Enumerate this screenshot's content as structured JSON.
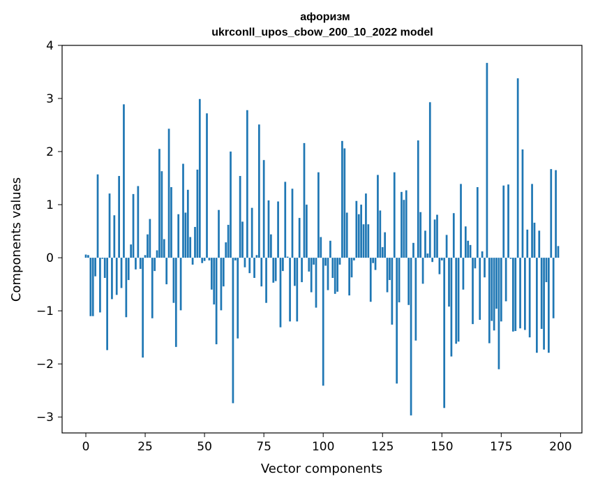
{
  "chart_data": {
    "type": "bar",
    "title": "афоризм",
    "subtitle": "ukrconll_upos_cbow_200_10_2022 model",
    "xlabel": "Vector components",
    "ylabel": "Components values",
    "xlim": [
      -10,
      209
    ],
    "ylim": [
      -3.3,
      4
    ],
    "xticks": [
      0,
      25,
      50,
      75,
      100,
      125,
      150,
      175,
      200
    ],
    "yticks": [
      -3,
      -2,
      -1,
      0,
      1,
      2,
      3,
      4
    ],
    "ytick_labels": [
      "−3",
      "−2",
      "−1",
      "0",
      "1",
      "2",
      "3",
      "4"
    ],
    "bar_color": "#1f77b4",
    "x": [
      0,
      1,
      2,
      3,
      4,
      5,
      6,
      7,
      8,
      9,
      10,
      11,
      12,
      13,
      14,
      15,
      16,
      17,
      18,
      19,
      20,
      21,
      22,
      23,
      24,
      25,
      26,
      27,
      28,
      29,
      30,
      31,
      32,
      33,
      34,
      35,
      36,
      37,
      38,
      39,
      40,
      41,
      42,
      43,
      44,
      45,
      46,
      47,
      48,
      49,
      50,
      51,
      52,
      53,
      54,
      55,
      56,
      57,
      58,
      59,
      60,
      61,
      62,
      63,
      64,
      65,
      66,
      67,
      68,
      69,
      70,
      71,
      72,
      73,
      74,
      75,
      76,
      77,
      78,
      79,
      80,
      81,
      82,
      83,
      84,
      85,
      86,
      87,
      88,
      89,
      90,
      91,
      92,
      93,
      94,
      95,
      96,
      97,
      98,
      99,
      100,
      101,
      102,
      103,
      104,
      105,
      106,
      107,
      108,
      109,
      110,
      111,
      112,
      113,
      114,
      115,
      116,
      117,
      118,
      119,
      120,
      121,
      122,
      123,
      124,
      125,
      126,
      127,
      128,
      129,
      130,
      131,
      132,
      133,
      134,
      135,
      136,
      137,
      138,
      139,
      140,
      141,
      142,
      143,
      144,
      145,
      146,
      147,
      148,
      149,
      150,
      151,
      152,
      153,
      154,
      155,
      156,
      157,
      158,
      159,
      160,
      161,
      162,
      163,
      164,
      165,
      166,
      167,
      168,
      169,
      170,
      171,
      172,
      173,
      174,
      175,
      176,
      177,
      178,
      179,
      180,
      181,
      182,
      183,
      184,
      185,
      186,
      187,
      188,
      189,
      190,
      191,
      192,
      193,
      194,
      195,
      196,
      197,
      198,
      199
    ],
    "values": [
      0.06,
      0.05,
      -1.1,
      -1.1,
      -0.35,
      1.57,
      -1.03,
      -0.02,
      -0.38,
      -1.74,
      1.21,
      -0.78,
      0.8,
      -0.7,
      1.54,
      -0.57,
      2.89,
      -1.12,
      -0.42,
      0.25,
      1.2,
      -0.22,
      1.35,
      -0.21,
      -1.88,
      0.05,
      0.44,
      0.73,
      -1.14,
      -0.25,
      0.14,
      2.05,
      1.63,
      0.35,
      -0.5,
      2.43,
      1.33,
      -0.85,
      -1.68,
      0.82,
      -0.99,
      1.77,
      0.85,
      1.28,
      0.39,
      -0.13,
      0.58,
      1.66,
      2.99,
      -0.1,
      -0.06,
      2.72,
      -0.05,
      -0.6,
      -0.88,
      -1.63,
      0.9,
      -0.99,
      -0.54,
      0.29,
      0.62,
      2.0,
      -2.74,
      -0.05,
      -1.52,
      1.54,
      0.68,
      -0.18,
      2.78,
      -0.29,
      0.94,
      -0.38,
      0.05,
      2.51,
      -0.54,
      1.84,
      -0.85,
      1.08,
      0.44,
      -0.47,
      -0.44,
      1.06,
      -1.31,
      -0.25,
      1.43,
      0.02,
      -1.2,
      1.3,
      -0.53,
      -1.2,
      0.75,
      -0.46,
      2.16,
      1.0,
      -0.26,
      -0.65,
      -0.13,
      -0.94,
      1.61,
      0.39,
      -2.41,
      -0.15,
      -0.61,
      0.32,
      -0.38,
      -0.68,
      -0.64,
      -0.13,
      2.2,
      2.06,
      0.85,
      -0.71,
      -0.37,
      -0.05,
      1.07,
      0.82,
      1.0,
      0.63,
      1.21,
      0.63,
      -0.83,
      -0.1,
      -0.23,
      1.56,
      0.89,
      0.2,
      0.48,
      -0.65,
      -0.42,
      -1.26,
      1.61,
      -2.37,
      -0.84,
      1.24,
      1.09,
      1.27,
      -0.89,
      -2.97,
      0.28,
      -1.56,
      2.21,
      0.86,
      -0.49,
      0.51,
      0.08,
      2.93,
      -0.08,
      0.72,
      0.81,
      -0.31,
      -0.05,
      -2.83,
      0.43,
      -0.92,
      -1.86,
      0.84,
      -1.62,
      -1.58,
      1.39,
      -0.6,
      0.59,
      0.32,
      0.24,
      -1.25,
      -0.2,
      1.33,
      -1.17,
      0.12,
      -0.37,
      3.67,
      -1.61,
      -1.19,
      -1.37,
      -0.96,
      -2.1,
      -1.2,
      1.36,
      -0.82,
      1.38,
      -0.02,
      -1.39,
      -1.38,
      3.38,
      -1.33,
      2.04,
      -1.36,
      0.53,
      -1.5,
      1.39,
      0.66,
      -1.79,
      0.51,
      -1.34,
      -1.73,
      -0.46,
      -1.79,
      1.67,
      -1.14,
      1.65,
      0.22
    ]
  }
}
